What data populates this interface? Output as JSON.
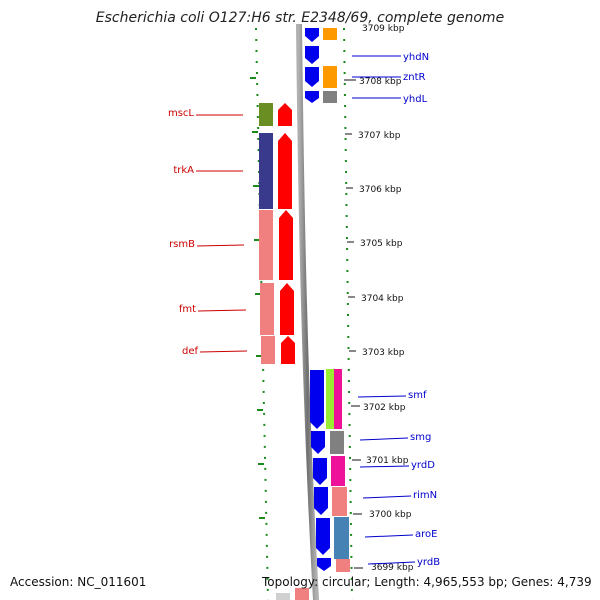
{
  "title": "Escherichia coli O127:H6 str. E2348/69, complete genome",
  "accession": "Accession: NC_011601",
  "topology": "Topology: circular; Length: 4,965,553 bp; Genes: 4,739",
  "kbp_ticks_left": [
    "3707 kbp",
    "3706 kbp",
    "3705 kbp",
    "3704 kbp",
    "3703 kbp"
  ],
  "kbp_ticks_right": [
    "3709 kbp",
    "3708 kbp",
    "3702 kbp",
    "3701 kbp",
    "3700 kbp",
    "3699 kbp"
  ],
  "genes_left": [
    "mscL",
    "trkA",
    "rsmB",
    "fmt",
    "def"
  ],
  "genes_right": [
    "yhdN",
    "zntR",
    "yhdL",
    "smf",
    "smg",
    "yrdD",
    "rimN",
    "aroE",
    "yrdB"
  ],
  "colors": {
    "gene_label_left": "#cc0000",
    "gene_label_right": "#0000cc",
    "track_dots": "#1a8a1a",
    "backbone": "#8a8a8a",
    "cds_red": "#ff0000",
    "cds_blue": "#0000ee",
    "cog_olive": "#6b8e23",
    "cog_navy": "#3a3a8c",
    "cog_salmon": "#f08080",
    "cog_orange": "#ff9900",
    "cog_gray": "#808080",
    "cog_green": "#99ee33",
    "cog_magenta": "#ee1199",
    "cog_steel": "#4682b4"
  }
}
